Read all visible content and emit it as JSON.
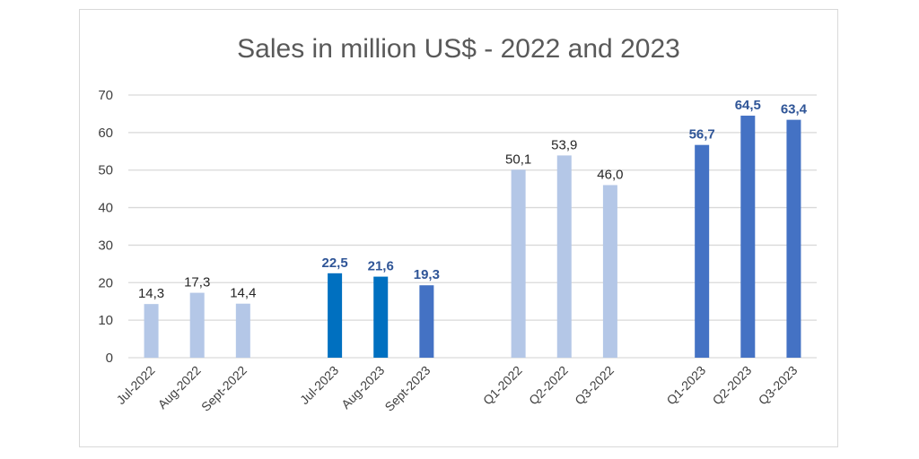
{
  "chart_data": {
    "type": "bar",
    "title": "Sales in million US$ - 2022 and 2023",
    "xlabel": "",
    "ylabel": "",
    "ylim": [
      0,
      70
    ],
    "yticks": [
      0,
      10,
      20,
      30,
      40,
      50,
      60,
      70
    ],
    "ytick_labels": [
      "0",
      "10",
      "20",
      "30",
      "40",
      "50",
      "60",
      "70"
    ],
    "grid": true,
    "legend": "none",
    "slots": 15,
    "categories": [
      "Jul-2022",
      "Aug-2022",
      "Sept-2022",
      "Jul-2023",
      "Aug-2023",
      "Sept-2023",
      "Q1-2022",
      "Q2-2022",
      "Q3-2022",
      "Q1-2023",
      "Q2-2023",
      "Q3-2023"
    ],
    "slot_index": [
      0,
      1,
      2,
      4,
      5,
      6,
      8,
      9,
      10,
      12,
      13,
      14
    ],
    "values": [
      14.3,
      17.3,
      14.4,
      22.5,
      21.6,
      19.3,
      50.1,
      53.9,
      46.0,
      56.7,
      64.5,
      63.4
    ],
    "data_labels": [
      "14,3",
      "17,3",
      "14,4",
      "22,5",
      "21,6",
      "19,3",
      "50,1",
      "53,9",
      "46,0",
      "56,7",
      "64,5",
      "63,4"
    ],
    "bar_colors": [
      "#B4C7E7",
      "#B4C7E7",
      "#B4C7E7",
      "#0070C0",
      "#0070C0",
      "#4472C4",
      "#B4C7E7",
      "#B4C7E7",
      "#B4C7E7",
      "#4472C4",
      "#4472C4",
      "#4472C4"
    ],
    "label_bold": [
      false,
      false,
      false,
      true,
      true,
      true,
      false,
      false,
      false,
      true,
      true,
      true
    ],
    "colors": {
      "gridline": "#d9d9d9",
      "label_2022": "#262626",
      "label_2023": "#2F5597"
    }
  }
}
